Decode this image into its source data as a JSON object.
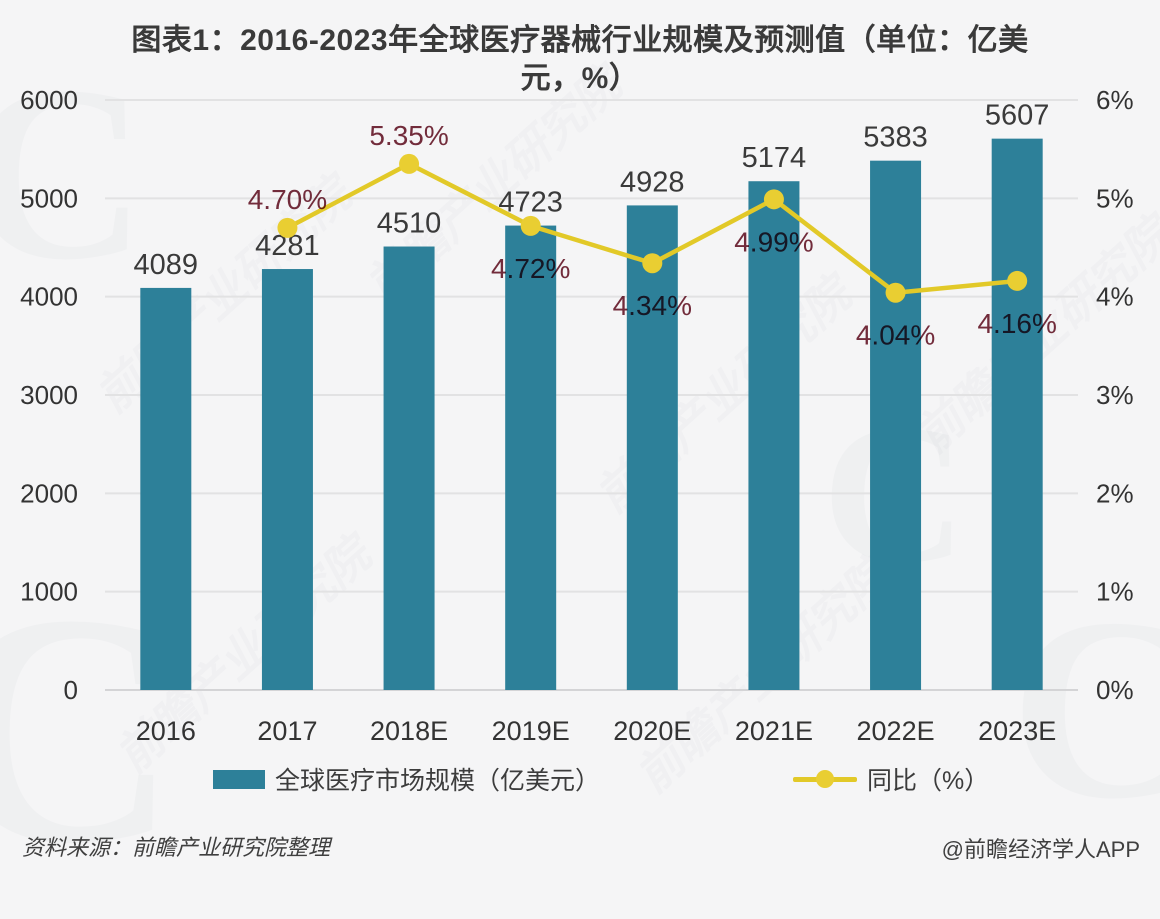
{
  "title": "图表1：2016-2023年全球医疗器械行业规模及预测值（单位：亿美元，%）",
  "watermark": {
    "brand_text": "前瞻产业研究院",
    "logo_glyph": "C"
  },
  "footer": {
    "source": "资料来源：前瞻产业研究院整理",
    "credit": "@前瞻经济学人APP"
  },
  "legend": [
    {
      "label": "全球医疗市场规模（亿美元）",
      "swatch": "bar",
      "color": "#2d8099"
    },
    {
      "label": "同比（%）",
      "swatch": "line-marker",
      "color": "#e2c928"
    }
  ],
  "colors": {
    "bar": "#2d8099",
    "line": "#e2c928",
    "marker": "#e9ce32",
    "bar_value_label": "#3a3a3a",
    "percent_label": "#772d3d",
    "axis_label": "#333333",
    "gridline": "#e2e2e3",
    "axis_line": "#d4d4d6",
    "background": "#f5f5f6"
  },
  "chart_data": {
    "type": "bar+line combo",
    "title": "图表1：2016-2023年全球医疗器械行业规模及预测值（单位：亿美元，%）",
    "categories": [
      "2016",
      "2017",
      "2018E",
      "2019E",
      "2020E",
      "2021E",
      "2022E",
      "2023E"
    ],
    "grid": "horizontal",
    "legend_position": "bottom",
    "series": [
      {
        "name": "全球医疗市场规模（亿美元）",
        "type": "bar",
        "axis": "left",
        "values": [
          4089,
          4281,
          4510,
          4723,
          4928,
          5174,
          5383,
          5607
        ],
        "labels": [
          "4089",
          "4281",
          "4510",
          "4723",
          "4928",
          "5174",
          "5383",
          "5607"
        ]
      },
      {
        "name": "同比（%）",
        "type": "line",
        "axis": "right",
        "values": [
          null,
          4.7,
          5.35,
          4.72,
          4.34,
          4.99,
          4.04,
          4.16
        ],
        "labels": [
          null,
          "4.70%",
          "5.35%",
          "4.72%",
          "4.34%",
          "4.99%",
          "4.04%",
          "4.16%"
        ],
        "label_positions": [
          null,
          "above",
          "above",
          "below",
          "below",
          "below",
          "below",
          "below"
        ]
      }
    ],
    "left_axis": {
      "min": 0,
      "max": 6000,
      "step": 1000,
      "ticks": [
        "6000",
        "5000",
        "4000",
        "3000",
        "2000",
        "1000",
        "0"
      ]
    },
    "right_axis": {
      "min": 0,
      "max": 6,
      "step": 1,
      "suffix": "%",
      "ticks": [
        "6%",
        "5%",
        "4%",
        "3%",
        "2%",
        "1%",
        "0%"
      ]
    }
  }
}
